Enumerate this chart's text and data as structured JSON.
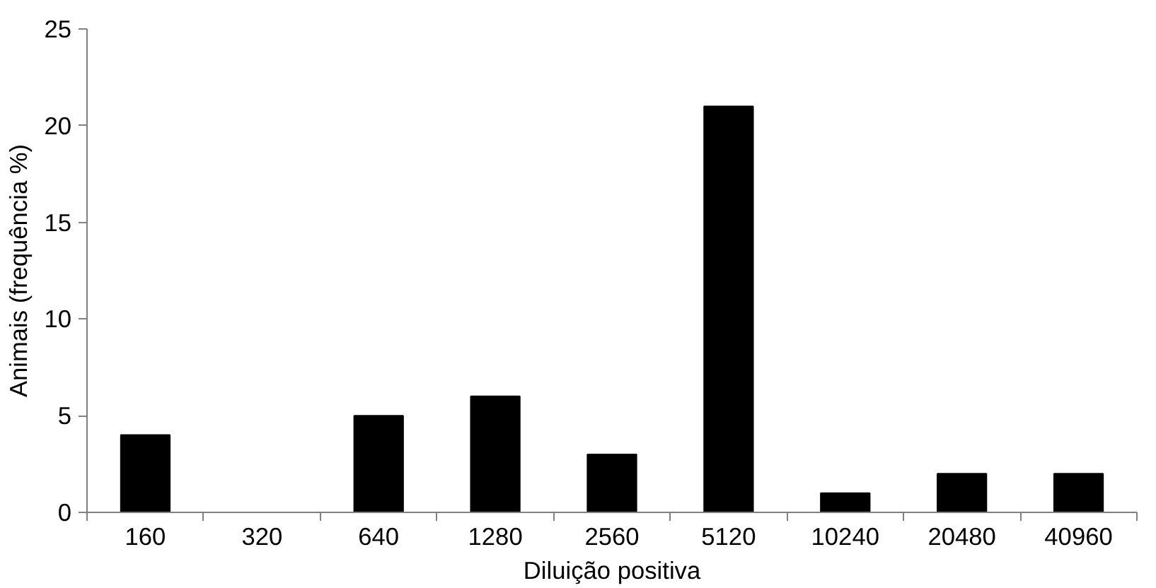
{
  "chart_data": {
    "type": "bar",
    "xlabel": "Diluição positiva",
    "ylabel": "Animais (frequência %)",
    "categories": [
      "160",
      "320",
      "640",
      "1280",
      "2560",
      "5120",
      "10240",
      "20480",
      "40960"
    ],
    "values": [
      4,
      0,
      5,
      6,
      3,
      21,
      1,
      2,
      2
    ],
    "color": "#000000",
    "ylim": [
      0,
      25
    ],
    "yticks": [
      0,
      5,
      10,
      15,
      20,
      25
    ],
    "grid": false
  }
}
